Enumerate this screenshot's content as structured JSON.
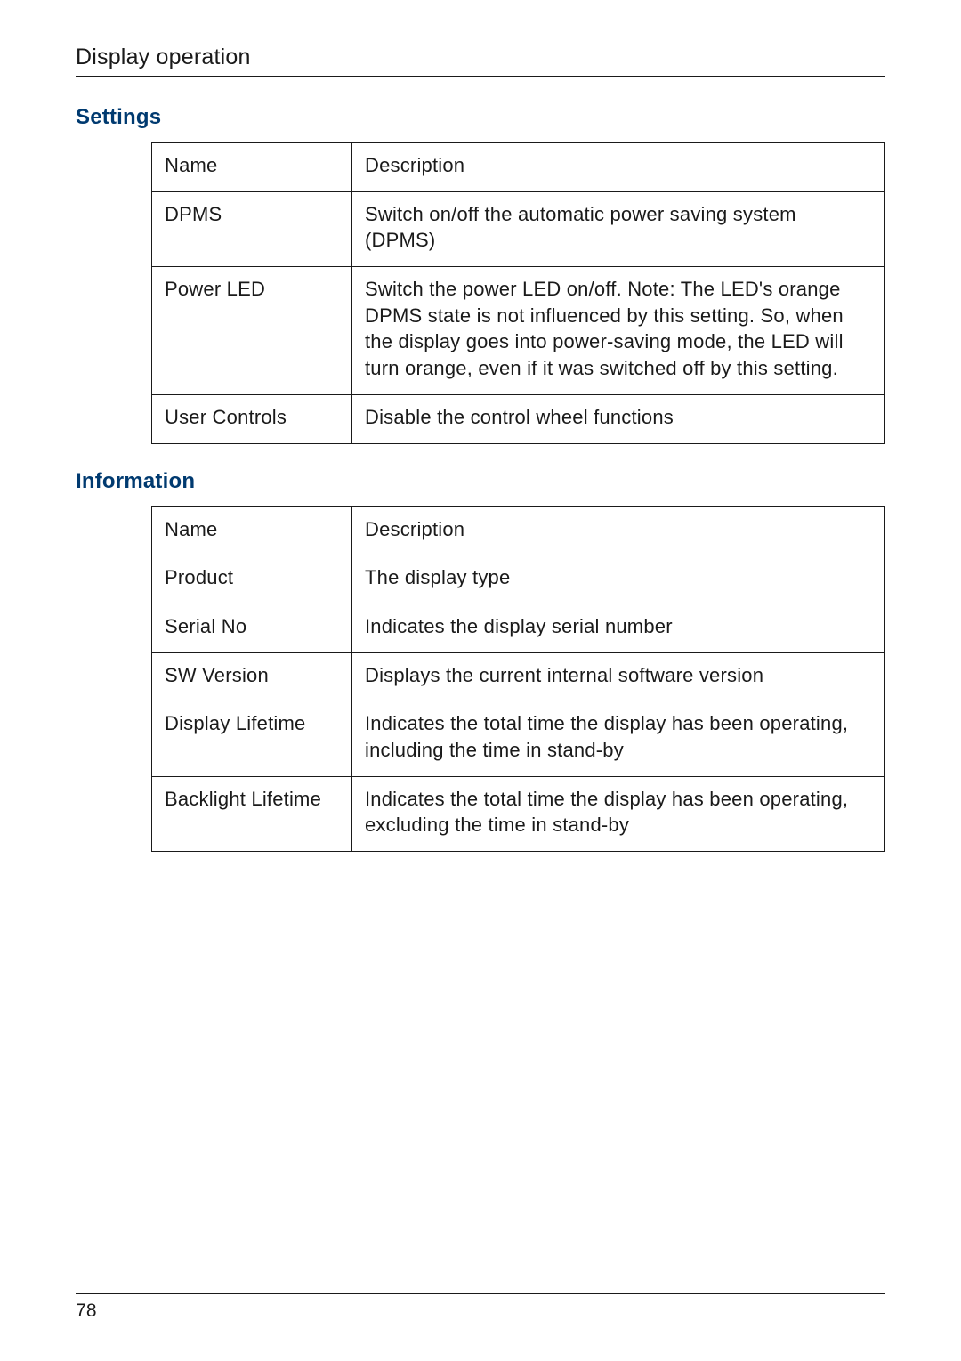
{
  "header": {
    "title": "Display operation"
  },
  "sections": [
    {
      "heading": "Settings",
      "columns": {
        "name": "Name",
        "description": "Description"
      },
      "rows": [
        {
          "name": "DPMS",
          "description": "Switch on/off the automatic power saving system (DPMS)"
        },
        {
          "name": "Power LED",
          "description": "Switch the power LED on/off. Note: The LED's orange DPMS state is not influenced by this setting. So, when the display goes into power-saving mode, the LED will turn orange, even if it was switched off by this setting."
        },
        {
          "name": "User Controls",
          "description": "Disable the control wheel functions"
        }
      ]
    },
    {
      "heading": "Information",
      "columns": {
        "name": "Name",
        "description": "Description"
      },
      "rows": [
        {
          "name": "Product",
          "description": "The display type"
        },
        {
          "name": "Serial No",
          "description": "Indicates the display serial number"
        },
        {
          "name": "SW Version",
          "description": "Displays the current internal software version"
        },
        {
          "name": "Display Lifetime",
          "description": "Indicates the total time the display has been operating, including the time in stand-by"
        },
        {
          "name": "Backlight Lifetime",
          "description": "Indicates the total time the display has been operating, excluding the time in stand-by"
        }
      ]
    }
  ],
  "footer": {
    "page_number": "78"
  }
}
